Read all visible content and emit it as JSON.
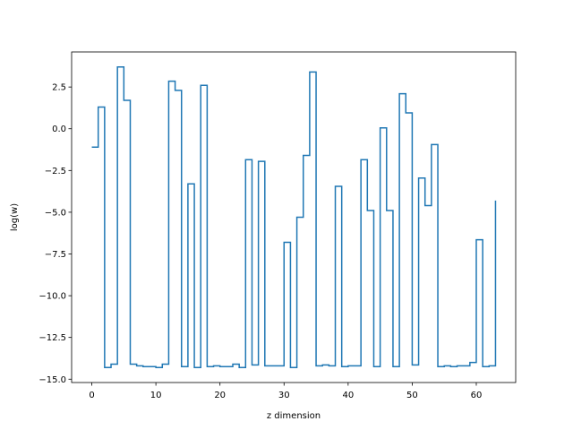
{
  "chart_data": {
    "type": "line",
    "drawstyle": "steps-post",
    "xlabel": "z dimension",
    "ylabel": "log(w)",
    "xlim": [
      -3.15,
      66.15
    ],
    "ylim": [
      -15.2,
      4.6
    ],
    "xticks": [
      0,
      10,
      20,
      30,
      40,
      50,
      60
    ],
    "xtick_labels": [
      "0",
      "10",
      "20",
      "30",
      "40",
      "50",
      "60"
    ],
    "yticks": [
      2.5,
      0.0,
      -2.5,
      -5.0,
      -7.5,
      -10.0,
      -12.5,
      -15.0
    ],
    "ytick_labels": [
      "2.5",
      "0.0",
      "−2.5",
      "−5.0",
      "−7.5",
      "−10.0",
      "−12.5",
      "−15.0"
    ],
    "grid": false,
    "series": [
      {
        "color": "#1f77b4",
        "x": [
          0,
          1,
          2,
          3,
          4,
          5,
          6,
          7,
          8,
          9,
          10,
          11,
          12,
          13,
          14,
          15,
          16,
          17,
          18,
          19,
          20,
          21,
          22,
          23,
          24,
          25,
          26,
          27,
          28,
          29,
          30,
          31,
          32,
          33,
          34,
          35,
          36,
          37,
          38,
          39,
          40,
          41,
          42,
          43,
          44,
          45,
          46,
          47,
          48,
          49,
          50,
          51,
          52,
          53,
          54,
          55,
          56,
          57,
          58,
          59,
          60,
          61,
          62,
          63
        ],
        "y": [
          -1.1,
          1.3,
          -14.3,
          -14.1,
          3.7,
          1.7,
          -14.1,
          -14.2,
          -14.25,
          -14.25,
          -14.3,
          -14.1,
          2.85,
          2.3,
          -14.25,
          -3.3,
          -14.3,
          2.6,
          -14.25,
          -14.2,
          -14.25,
          -14.25,
          -14.1,
          -14.3,
          -1.85,
          -14.15,
          -1.95,
          -14.2,
          -14.2,
          -14.2,
          -6.8,
          -14.3,
          -5.3,
          -1.6,
          3.4,
          -14.2,
          -14.15,
          -14.2,
          -3.45,
          -14.25,
          -14.2,
          -14.2,
          -1.85,
          -4.9,
          -14.25,
          0.05,
          -4.9,
          -14.25,
          2.1,
          0.95,
          -14.15,
          -2.95,
          -4.6,
          -0.95,
          -14.25,
          -14.2,
          -14.25,
          -14.2,
          -14.2,
          -14.0,
          -6.65,
          -14.25,
          -14.2,
          -4.3
        ]
      }
    ]
  }
}
